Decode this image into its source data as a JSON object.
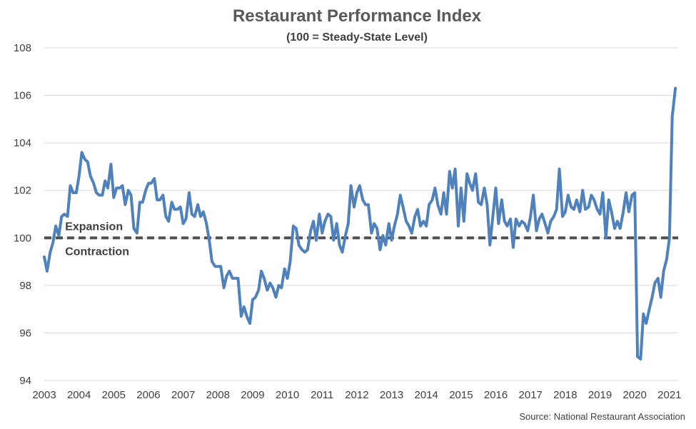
{
  "chart_data": {
    "type": "line",
    "title": "Restaurant Performance Index",
    "subtitle": "(100 = Steady-State Level)",
    "source": "Source: National Restaurant Association",
    "xlabel": "",
    "ylabel": "",
    "xlim": [
      2003.0,
      2021.25
    ],
    "ylim": [
      94,
      108
    ],
    "yticks": [
      94,
      96,
      98,
      100,
      102,
      104,
      106,
      108
    ],
    "xtick_labels": [
      "2003",
      "2004",
      "2005",
      "2006",
      "2007",
      "2008",
      "2009",
      "2010",
      "2011",
      "2012",
      "2013",
      "2014",
      "2015",
      "2016",
      "2017",
      "2018",
      "2019",
      "2020",
      "2021"
    ],
    "grid": true,
    "line_color": "#4F81BD",
    "reference_line": {
      "value": 100,
      "color": "#505050",
      "style": "dashed"
    },
    "annotations": [
      {
        "text": "Expansion",
        "x": 2003.6,
        "y": 100.5
      },
      {
        "text": "Contraction",
        "x": 2003.6,
        "y": 99.45
      }
    ],
    "series": [
      {
        "x": [
          2003.0,
          2003.08,
          2003.17,
          2003.25,
          2003.33,
          2003.42,
          2003.5,
          2003.58,
          2003.67,
          2003.75,
          2003.83,
          2003.92,
          2004.0,
          2004.08,
          2004.17,
          2004.25,
          2004.33,
          2004.42,
          2004.5,
          2004.58,
          2004.67,
          2004.75,
          2004.83,
          2004.92,
          2005.0,
          2005.08,
          2005.17,
          2005.25,
          2005.33,
          2005.42,
          2005.5,
          2005.58,
          2005.67,
          2005.75,
          2005.83,
          2005.92,
          2006.0,
          2006.08,
          2006.17,
          2006.25,
          2006.33,
          2006.42,
          2006.5,
          2006.58,
          2006.67,
          2006.75,
          2006.83,
          2006.92,
          2007.0,
          2007.08,
          2007.17,
          2007.25,
          2007.33,
          2007.42,
          2007.5,
          2007.58,
          2007.67,
          2007.75,
          2007.83,
          2007.92,
          2008.0,
          2008.08,
          2008.17,
          2008.25,
          2008.33,
          2008.42,
          2008.5,
          2008.58,
          2008.67,
          2008.75,
          2008.83,
          2008.92,
          2009.0,
          2009.08,
          2009.17,
          2009.25,
          2009.33,
          2009.42,
          2009.5,
          2009.58,
          2009.67,
          2009.75,
          2009.83,
          2009.92,
          2010.0,
          2010.08,
          2010.17,
          2010.25,
          2010.33,
          2010.42,
          2010.5,
          2010.58,
          2010.67,
          2010.75,
          2010.83,
          2010.92,
          2011.0,
          2011.08,
          2011.17,
          2011.25,
          2011.33,
          2011.42,
          2011.5,
          2011.58,
          2011.67,
          2011.75,
          2011.83,
          2011.92,
          2012.0,
          2012.08,
          2012.17,
          2012.25,
          2012.33,
          2012.42,
          2012.5,
          2012.58,
          2012.67,
          2012.75,
          2012.83,
          2012.92,
          2013.0,
          2013.08,
          2013.17,
          2013.25,
          2013.33,
          2013.42,
          2013.5,
          2013.58,
          2013.67,
          2013.75,
          2013.83,
          2013.92,
          2014.0,
          2014.08,
          2014.17,
          2014.25,
          2014.33,
          2014.42,
          2014.5,
          2014.58,
          2014.67,
          2014.75,
          2014.83,
          2014.92,
          2015.0,
          2015.08,
          2015.17,
          2015.25,
          2015.33,
          2015.42,
          2015.5,
          2015.58,
          2015.67,
          2015.75,
          2015.83,
          2015.92,
          2016.0,
          2016.08,
          2016.17,
          2016.25,
          2016.33,
          2016.42,
          2016.5,
          2016.58,
          2016.67,
          2016.75,
          2016.83,
          2016.92,
          2017.0,
          2017.08,
          2017.17,
          2017.25,
          2017.33,
          2017.42,
          2017.5,
          2017.58,
          2017.67,
          2017.75,
          2017.83,
          2017.92,
          2018.0,
          2018.08,
          2018.17,
          2018.25,
          2018.33,
          2018.42,
          2018.5,
          2018.58,
          2018.67,
          2018.75,
          2018.83,
          2018.92,
          2019.0,
          2019.08,
          2019.17,
          2019.25,
          2019.33,
          2019.42,
          2019.5,
          2019.58,
          2019.67,
          2019.75,
          2019.83,
          2019.92,
          2020.0,
          2020.08,
          2020.17,
          2020.25,
          2020.33,
          2020.42,
          2020.5,
          2020.58,
          2020.67,
          2020.75,
          2020.83,
          2020.92,
          2021.0,
          2021.08,
          2021.17
        ],
        "values": [
          99.2,
          98.6,
          99.4,
          99.8,
          100.5,
          100.1,
          100.9,
          101.0,
          100.9,
          102.2,
          101.9,
          101.9,
          102.6,
          103.6,
          103.3,
          103.2,
          102.6,
          102.3,
          101.9,
          101.8,
          101.8,
          102.4,
          102.1,
          103.1,
          101.7,
          102.1,
          102.1,
          102.2,
          101.4,
          102.0,
          101.8,
          100.4,
          100.2,
          101.5,
          101.5,
          102.0,
          102.3,
          102.3,
          102.5,
          101.6,
          101.6,
          101.8,
          100.9,
          100.7,
          101.5,
          101.2,
          101.2,
          101.3,
          100.6,
          100.8,
          101.9,
          101.0,
          100.9,
          101.4,
          100.9,
          101.1,
          100.6,
          99.9,
          99.0,
          98.8,
          98.8,
          98.8,
          97.9,
          98.4,
          98.6,
          98.3,
          98.3,
          98.3,
          96.7,
          97.1,
          96.7,
          96.4,
          97.4,
          97.5,
          97.8,
          98.6,
          98.3,
          97.8,
          98.1,
          97.9,
          97.5,
          98.0,
          97.9,
          98.7,
          98.3,
          99.0,
          100.5,
          100.4,
          99.7,
          99.5,
          99.4,
          99.5,
          100.3,
          100.7,
          99.9,
          101.0,
          100.2,
          100.7,
          101.0,
          100.9,
          99.9,
          100.6,
          99.7,
          99.4,
          100.1,
          100.6,
          102.2,
          101.3,
          101.9,
          102.2,
          101.6,
          101.4,
          101.4,
          100.2,
          100.6,
          100.4,
          99.5,
          100.1,
          99.7,
          100.6,
          99.9,
          100.5,
          101.0,
          101.8,
          101.3,
          100.7,
          100.5,
          100.2,
          100.9,
          101.2,
          100.5,
          100.7,
          100.5,
          101.4,
          101.6,
          102.1,
          101.4,
          101.0,
          101.9,
          101.0,
          102.8,
          102.1,
          102.9,
          100.5,
          102.1,
          100.7,
          102.7,
          102.3,
          102.0,
          102.7,
          101.5,
          101.4,
          102.1,
          101.4,
          99.7,
          101.0,
          102.1,
          100.6,
          101.6,
          100.7,
          100.5,
          100.8,
          99.6,
          100.8,
          100.5,
          100.7,
          100.6,
          100.3,
          100.9,
          101.8,
          100.3,
          100.8,
          101.0,
          100.6,
          100.2,
          100.7,
          100.9,
          101.2,
          102.9,
          100.9,
          101.1,
          101.8,
          101.3,
          101.2,
          101.6,
          101.1,
          102.0,
          101.2,
          101.3,
          101.8,
          101.6,
          101.2,
          101.0,
          101.9,
          100.0,
          101.6,
          101.1,
          100.4,
          100.7,
          100.4,
          101.1,
          101.9,
          101.1,
          101.8,
          101.9,
          95.0,
          94.9,
          96.8,
          96.4,
          97.0,
          97.5,
          98.1,
          98.3,
          97.5,
          98.6,
          99.1,
          100.0,
          105.1,
          106.3
        ]
      }
    ]
  }
}
